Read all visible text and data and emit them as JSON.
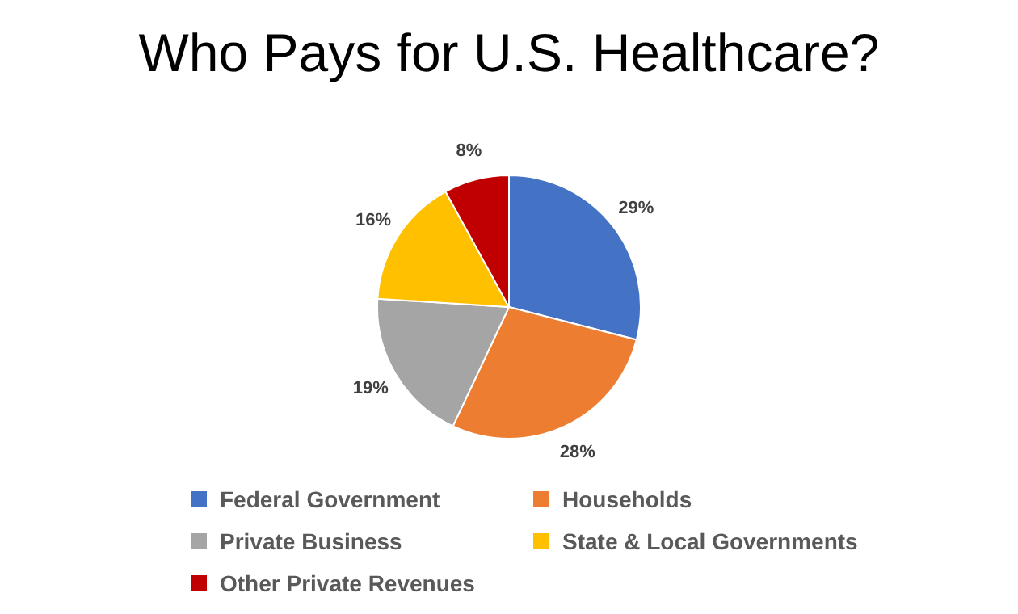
{
  "chart_data": {
    "type": "pie",
    "title": "Who Pays for U.S. Healthcare?",
    "categories": [
      "Federal Government",
      "Households",
      "Private Business",
      "State & Local Governments",
      "Other Private Revenues"
    ],
    "values": [
      29,
      28,
      19,
      16,
      8
    ],
    "colors": [
      "#4472c4",
      "#ed7d31",
      "#a5a5a5",
      "#ffc000",
      "#c00000"
    ],
    "value_labels": [
      "29%",
      "28%",
      "19%",
      "16%",
      "8%"
    ],
    "legend": "bottom"
  }
}
